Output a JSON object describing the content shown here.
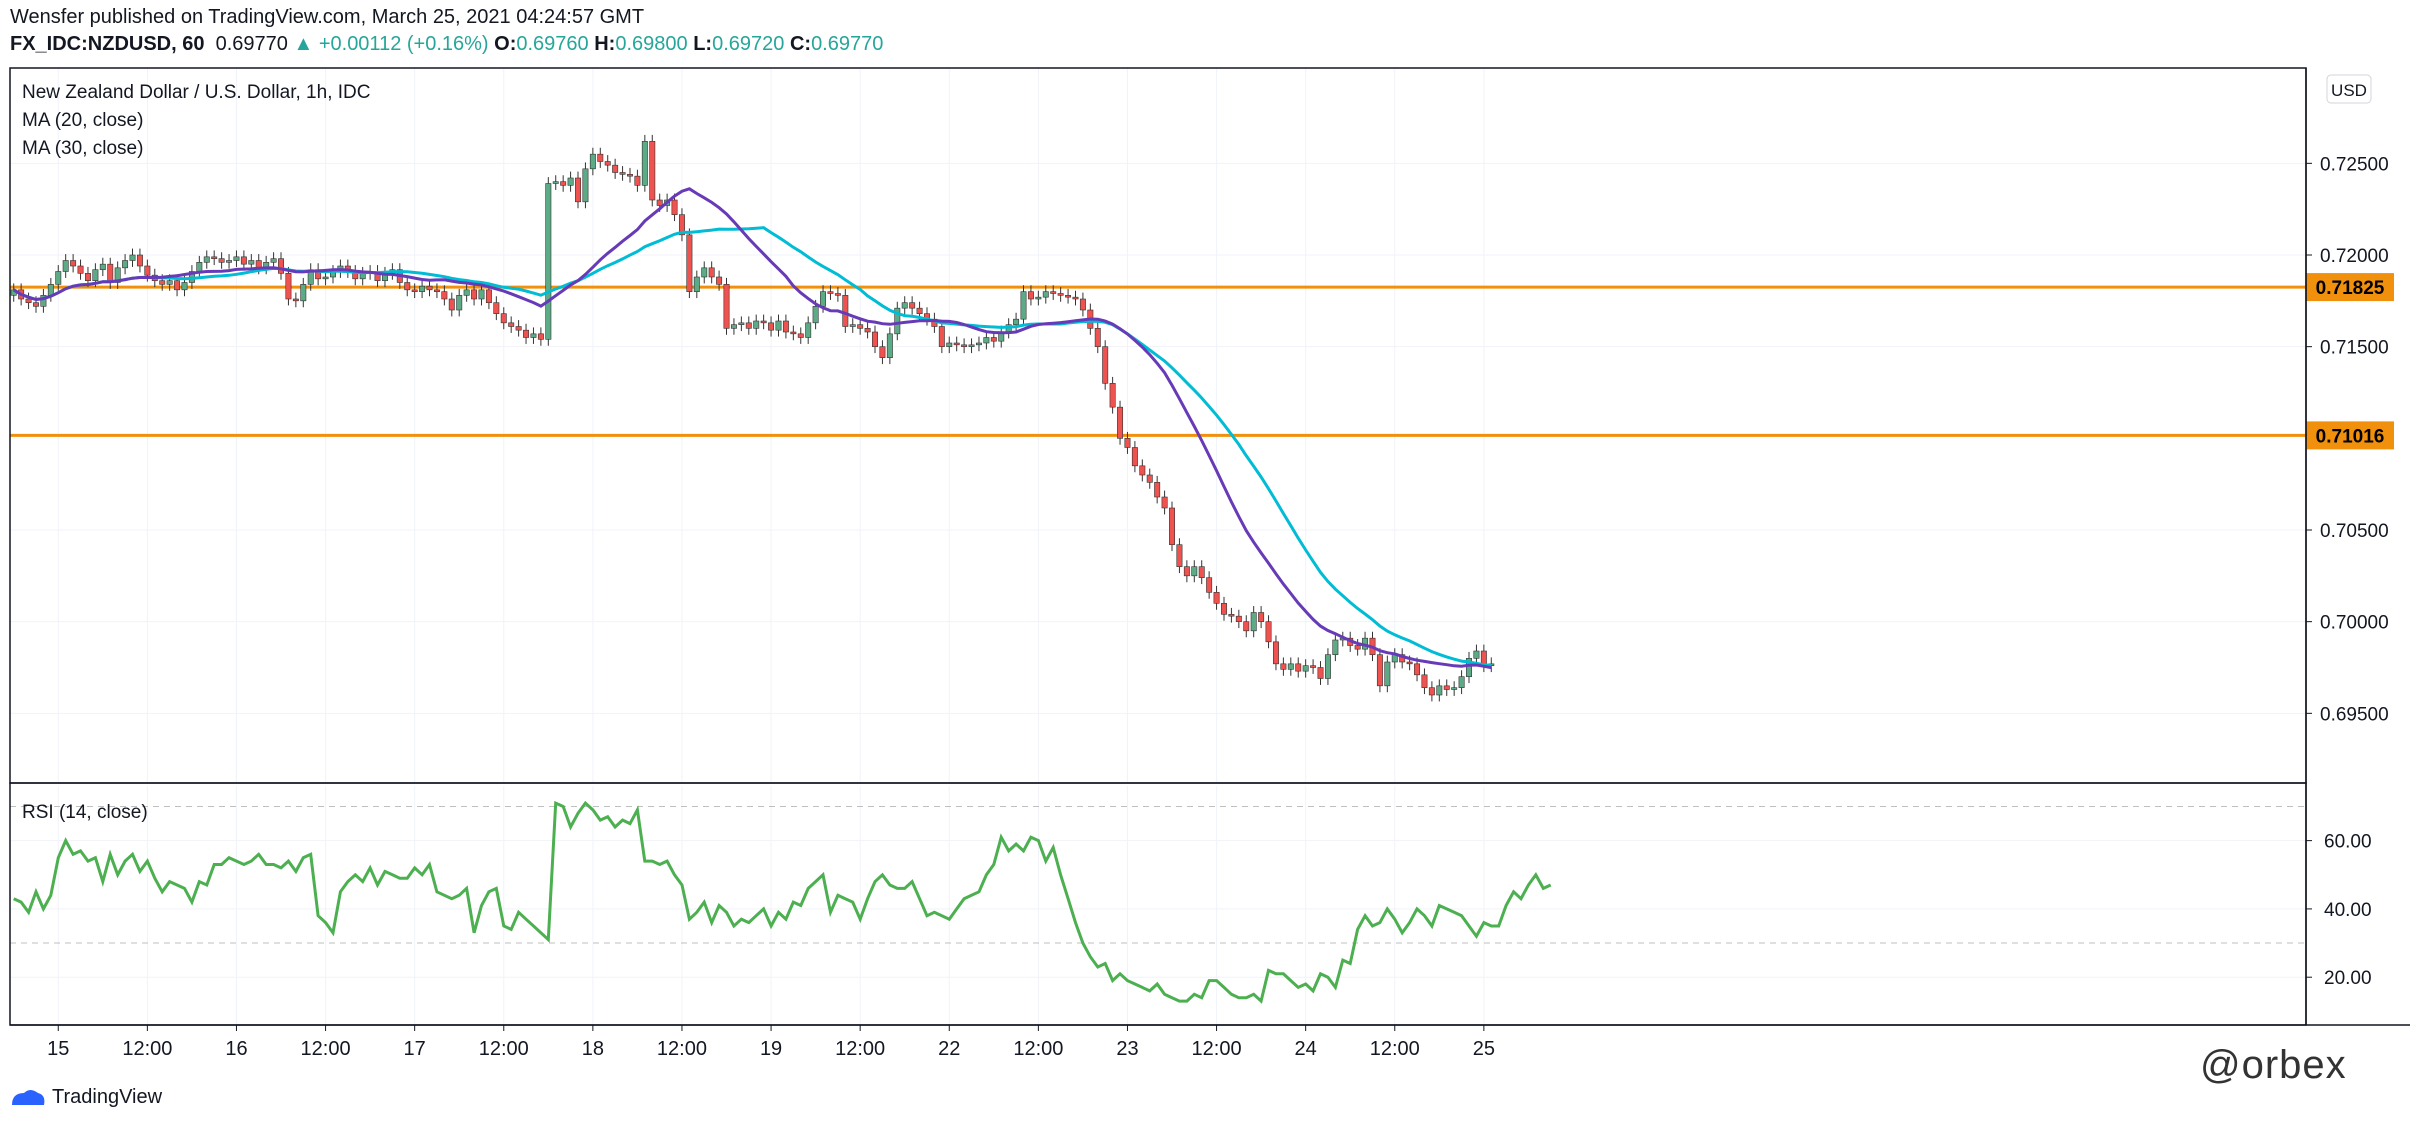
{
  "header": {
    "line1": "Wensfer published on TradingView.com, March 25, 2021 04:24:57 GMT",
    "symbol": "FX_IDC:NZDUSD, 60",
    "last": "0.69770",
    "change": "+0.00112 (+0.16%)",
    "open_k": "O:",
    "open_v": "0.69760",
    "high_k": "H:",
    "high_v": "0.69800",
    "low_k": "L:",
    "low_v": "0.69720",
    "close_k": "C:",
    "close_v": "0.69770"
  },
  "legend": {
    "title": "New Zealand Dollar / U.S. Dollar, 1h, IDC",
    "ma20": "MA (20, close)",
    "ma30": "MA (30, close)",
    "rsi": "RSI (14, close)",
    "currency": "USD"
  },
  "footer": {
    "brand": "TradingView",
    "watermark": "@orbex"
  },
  "colors": {
    "up": "#5cab86",
    "down": "#ef5350",
    "ma20": "#673ab7",
    "ma30": "#00bcd4",
    "level": "#f0900c",
    "rsi": "#4caf50",
    "grid": "#f0f3fa",
    "axis": "#787b86"
  },
  "chart_data": [
    {
      "type": "candlestick",
      "title": "New Zealand Dollar / U.S. Dollar, 1h, IDC",
      "y_tick_labels": [
        "0.69500",
        "0.70000",
        "0.70500",
        "0.71500",
        "0.72000",
        "0.72500"
      ],
      "y_ticks": [
        0.695,
        0.7,
        0.705,
        0.715,
        0.72,
        0.725
      ],
      "ylim": [
        0.6912,
        0.7302
      ],
      "x_tick_labels": [
        "15",
        "12:00",
        "16",
        "12:00",
        "17",
        "12:00",
        "18",
        "12:00",
        "19",
        "12:00",
        "22",
        "12:00",
        "23",
        "12:00",
        "24",
        "12:00",
        "25"
      ],
      "x_tick_index": [
        6,
        18,
        30,
        42,
        54,
        66,
        78,
        90,
        102,
        114,
        126,
        138,
        150,
        162,
        174,
        186,
        198
      ],
      "horizontal_levels": [
        {
          "label": "0.71825",
          "value": 0.71825
        },
        {
          "label": "0.71016",
          "value": 0.71016
        }
      ],
      "candles_close": [
        0.7181,
        0.7176,
        0.7174,
        0.7172,
        0.7178,
        0.7184,
        0.7191,
        0.7197,
        0.7194,
        0.719,
        0.7186,
        0.7192,
        0.7195,
        0.7185,
        0.7193,
        0.7197,
        0.72,
        0.7194,
        0.7189,
        0.7186,
        0.7184,
        0.7186,
        0.7181,
        0.7185,
        0.7191,
        0.7196,
        0.7199,
        0.7198,
        0.7196,
        0.7197,
        0.7199,
        0.7195,
        0.7197,
        0.7193,
        0.7196,
        0.7198,
        0.719,
        0.7176,
        0.7175,
        0.7184,
        0.7192,
        0.7187,
        0.7188,
        0.7191,
        0.7194,
        0.7191,
        0.7187,
        0.719,
        0.7191,
        0.7186,
        0.719,
        0.7192,
        0.7185,
        0.7181,
        0.718,
        0.7183,
        0.7181,
        0.718,
        0.7176,
        0.717,
        0.7178,
        0.7181,
        0.7176,
        0.7181,
        0.7174,
        0.7168,
        0.7163,
        0.7161,
        0.7159,
        0.7155,
        0.7157,
        0.7154,
        0.7239,
        0.724,
        0.7238,
        0.7242,
        0.7229,
        0.7247,
        0.7255,
        0.7251,
        0.7249,
        0.7245,
        0.7244,
        0.7243,
        0.7238,
        0.7262,
        0.723,
        0.7227,
        0.723,
        0.7222,
        0.7211,
        0.718,
        0.7188,
        0.7193,
        0.7188,
        0.7184,
        0.716,
        0.7162,
        0.7163,
        0.716,
        0.7164,
        0.7163,
        0.7159,
        0.7164,
        0.7158,
        0.7157,
        0.7155,
        0.7163,
        0.7172,
        0.718,
        0.7179,
        0.7178,
        0.7161,
        0.7162,
        0.716,
        0.7158,
        0.715,
        0.7144,
        0.7157,
        0.7171,
        0.7174,
        0.7171,
        0.7168,
        0.7165,
        0.7161,
        0.715,
        0.7152,
        0.7151,
        0.715,
        0.7151,
        0.7152,
        0.7155,
        0.7153,
        0.7158,
        0.7162,
        0.7165,
        0.718,
        0.7176,
        0.7177,
        0.718,
        0.7179,
        0.7178,
        0.7177,
        0.7176,
        0.717,
        0.716,
        0.715,
        0.713,
        0.7117,
        0.71,
        0.7095,
        0.7085,
        0.708,
        0.7076,
        0.7068,
        0.7062,
        0.7042,
        0.703,
        0.7025,
        0.703,
        0.7024,
        0.7016,
        0.701,
        0.7004,
        0.7003,
        0.7,
        0.6995,
        0.7005,
        0.7,
        0.6989,
        0.6977,
        0.6974,
        0.6977,
        0.6973,
        0.6976,
        0.6975,
        0.6969,
        0.6982,
        0.699,
        0.6991,
        0.6987,
        0.6985,
        0.6991,
        0.6982,
        0.6965,
        0.6978,
        0.6982,
        0.6978,
        0.6977,
        0.6971,
        0.6964,
        0.696,
        0.6965,
        0.6963,
        0.6964,
        0.697,
        0.698,
        0.6984,
        0.6976,
        0.6977
      ]
    },
    {
      "type": "line",
      "title": "RSI (14, close)",
      "y_tick_labels": [
        "20.00",
        "40.00",
        "60.00"
      ],
      "y_ticks": [
        20,
        40,
        60
      ],
      "ylim": [
        6,
        76
      ],
      "bands": [
        30,
        70
      ],
      "series": [
        {
          "name": "RSI (14, close)",
          "values": [
            43,
            42,
            39,
            45,
            40,
            44,
            55,
            60,
            56,
            57,
            54,
            55,
            48,
            56,
            50,
            54,
            56,
            51,
            54,
            49,
            45,
            48,
            47,
            46,
            42,
            48,
            47,
            53,
            53,
            55,
            54,
            53,
            54,
            56,
            53,
            53,
            52,
            54,
            51,
            55,
            56,
            38,
            36,
            33,
            45,
            48,
            50,
            48,
            52,
            47,
            51,
            50,
            49,
            49,
            52,
            50,
            53,
            45,
            44,
            43,
            44,
            46,
            33,
            41,
            45,
            46,
            35,
            34,
            39,
            37,
            35,
            33,
            31,
            71,
            70,
            64,
            68,
            71,
            69,
            66,
            67,
            64,
            66,
            65,
            69,
            54,
            54,
            53,
            54,
            50,
            47,
            37,
            39,
            42,
            36,
            41,
            39,
            35,
            37,
            36,
            38,
            40,
            35,
            39,
            37,
            42,
            41,
            46,
            48,
            50,
            39,
            44,
            43,
            42,
            37,
            43,
            48,
            50,
            47,
            46,
            46,
            48,
            43,
            38,
            39,
            38,
            37,
            40,
            43,
            44,
            45,
            50,
            53,
            61,
            57,
            59,
            57,
            61,
            60,
            54,
            58,
            50,
            43,
            36,
            30,
            26,
            23,
            24,
            19,
            21,
            19,
            18,
            17,
            16,
            18,
            15,
            14,
            13,
            13,
            15,
            14,
            19,
            19,
            17,
            15,
            14,
            14,
            15,
            13,
            22,
            21,
            21,
            19,
            17,
            18,
            16,
            21,
            20,
            17,
            25,
            24,
            34,
            38,
            35,
            36,
            40,
            37,
            33,
            36,
            40,
            38,
            35,
            41,
            40,
            39,
            38,
            35,
            32,
            36,
            35,
            35,
            41,
            45,
            43,
            47,
            50,
            46,
            47
          ]
        }
      ]
    }
  ]
}
